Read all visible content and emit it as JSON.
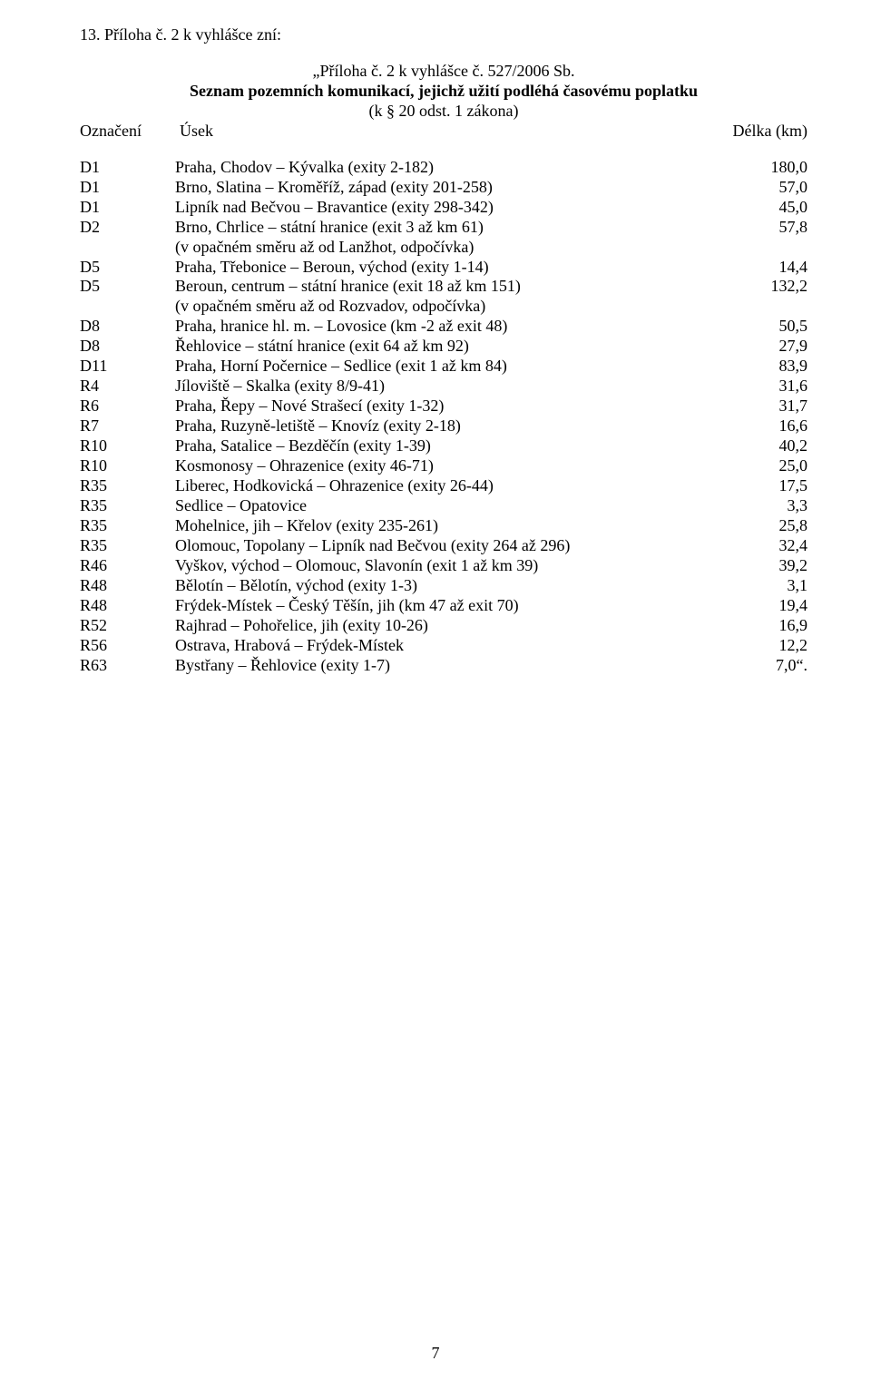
{
  "intro": "13. Příloha č. 2 k vyhlášce zní:",
  "quoteTitle": "„Příloha č. 2 k vyhlášce č. 527/2006 Sb.",
  "seznamTitle": "Seznam pozemních komunikací, jejichž užití podléhá časovému poplatku",
  "kLine": "(k § 20 odst. 1 zákona)",
  "header": {
    "oznaceni": "Označení",
    "usek": "Úsek",
    "delka": "Délka (km)"
  },
  "rows": [
    {
      "code": "D1",
      "desc": "Praha, Chodov – Kývalka (exity 2-182)",
      "val": "180,0"
    },
    {
      "code": "D1",
      "desc": "Brno, Slatina – Kroměříž, západ (exity 201-258)",
      "val": "57,0"
    },
    {
      "code": "D1",
      "desc": "Lipník nad Bečvou – Bravantice (exity 298-342)",
      "val": "45,0"
    },
    {
      "code": "D2",
      "desc": "Brno, Chrlice – státní hranice (exit 3 až km 61)",
      "val": "57,8"
    },
    {
      "code": "",
      "desc": "(v opačném směru až od Lanžhot, odpočívka)",
      "val": ""
    },
    {
      "code": "D5",
      "desc": "Praha, Třebonice – Beroun, východ (exity 1-14)",
      "val": "14,4"
    },
    {
      "code": "D5",
      "desc": "Beroun, centrum – státní hranice (exit 18 až km 151)",
      "val": "132,2"
    },
    {
      "code": "",
      "desc": "(v opačném směru až od Rozvadov, odpočívka)",
      "val": ""
    },
    {
      "code": "D8",
      "desc": "Praha, hranice hl. m. – Lovosice (km -2 až exit 48)",
      "val": "50,5"
    },
    {
      "code": "D8",
      "desc": "Řehlovice – státní hranice (exit 64 až km 92)",
      "val": "27,9"
    },
    {
      "code": "D11",
      "desc": "Praha, Horní Počernice – Sedlice (exit 1 až km 84)",
      "val": "83,9"
    },
    {
      "code": "R4",
      "desc": "Jíloviště – Skalka (exity 8/9-41)",
      "val": "31,6"
    },
    {
      "code": "R6",
      "desc": "Praha, Řepy – Nové Strašecí (exity 1-32)",
      "val": "31,7"
    },
    {
      "code": "R7",
      "desc": "Praha, Ruzyně-letiště – Knovíz (exity 2-18)",
      "val": "16,6"
    },
    {
      "code": "R10",
      "desc": "Praha, Satalice – Bezděčín (exity 1-39)",
      "val": "40,2"
    },
    {
      "code": "R10",
      "desc": "Kosmonosy – Ohrazenice (exity 46-71)",
      "val": "25,0"
    },
    {
      "code": "R35",
      "desc": "Liberec, Hodkovická – Ohrazenice (exity 26-44)",
      "val": "17,5"
    },
    {
      "code": "R35",
      "desc": "Sedlice – Opatovice",
      "val": "3,3"
    },
    {
      "code": "R35",
      "desc": "Mohelnice, jih – Křelov (exity 235-261)",
      "val": "25,8"
    },
    {
      "code": "R35",
      "desc": "Olomouc, Topolany – Lipník nad Bečvou (exity 264 až 296)",
      "val": "32,4"
    },
    {
      "code": "R46",
      "desc": "Vyškov, východ – Olomouc, Slavonín (exit 1 až km 39)",
      "val": "39,2"
    },
    {
      "code": "R48",
      "desc": "Bělotín – Bělotín, východ (exity 1-3)",
      "val": "3,1"
    },
    {
      "code": "R48",
      "desc": "Frýdek-Místek – Český Těšín, jih (km 47 až exit 70)",
      "val": "19,4"
    },
    {
      "code": "R52",
      "desc": "Rajhrad – Pohořelice, jih (exity 10-26)",
      "val": "16,9"
    },
    {
      "code": "R56",
      "desc": "Ostrava, Hrabová – Frýdek-Místek",
      "val": "12,2"
    },
    {
      "code": "R63",
      "desc": "Bystřany – Řehlovice (exity 1-7)",
      "val": "7,0“."
    }
  ],
  "pageNumber": "7"
}
